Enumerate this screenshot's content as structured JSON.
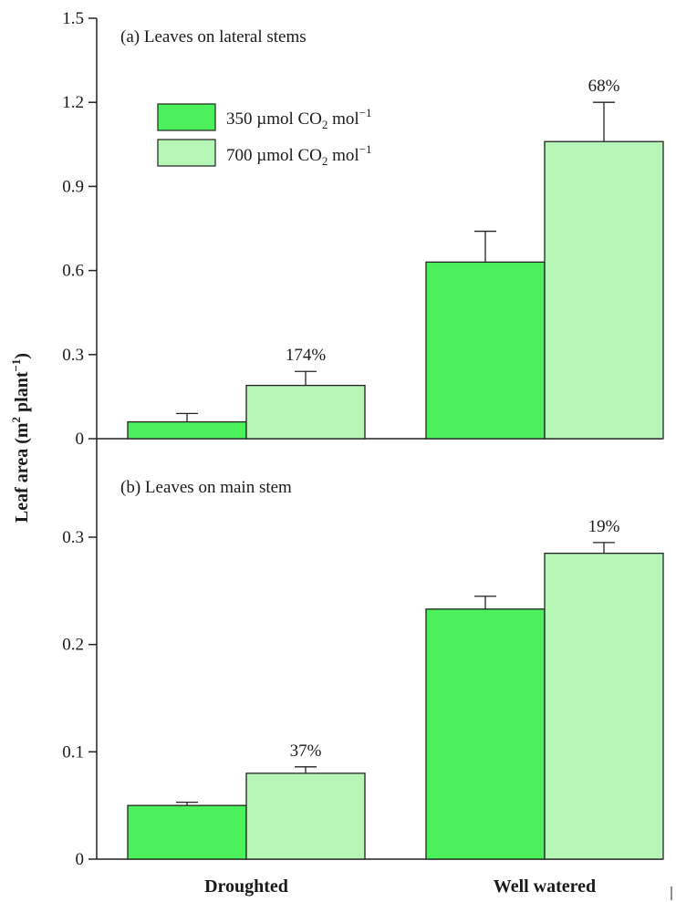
{
  "chart_data": [
    {
      "type": "bar",
      "title": "(a) Leaves on lateral stems",
      "categories": [
        "Droughted",
        "Well watered"
      ],
      "series": [
        {
          "name": "350 µmol CO2 mol−1",
          "color": "#4cf05c",
          "values": [
            0.06,
            0.63
          ],
          "errors": [
            0.03,
            0.11
          ]
        },
        {
          "name": "700 µmol CO2 mol−1",
          "color": "#b6f7b8",
          "values": [
            0.19,
            1.06
          ],
          "errors": [
            0.05,
            0.14
          ]
        }
      ],
      "annotations": [
        "174%",
        "68%"
      ],
      "ylim": [
        0,
        1.5
      ],
      "yticks": [
        0,
        0.3,
        0.6,
        0.9,
        1.2,
        1.5
      ],
      "ytick_labels": [
        "0",
        "0.3",
        "0.6",
        "0.9",
        "1.2",
        "1.5"
      ]
    },
    {
      "type": "bar",
      "title": "(b) Leaves on main stem",
      "categories": [
        "Droughted",
        "Well watered"
      ],
      "series": [
        {
          "name": "350 µmol CO2 mol−1",
          "color": "#4cf05c",
          "values": [
            0.05,
            0.233
          ],
          "errors": [
            0.003,
            0.012
          ]
        },
        {
          "name": "700 µmol CO2 mol−1",
          "color": "#b6f7b8",
          "values": [
            0.08,
            0.285
          ],
          "errors": [
            0.006,
            0.01
          ]
        }
      ],
      "annotations": [
        "37%",
        "19%"
      ],
      "ylim": [
        0,
        0.35
      ],
      "yticks": [
        0,
        0.1,
        0.2,
        0.3
      ],
      "ytick_labels": [
        "0",
        "0.1",
        "0.2",
        "0.3"
      ]
    }
  ],
  "legend": {
    "placement": "top-left",
    "items": [
      {
        "pre": "350 µmol CO",
        "sub": "2",
        "post": " mol",
        "sup": "−1",
        "color": "#4cf05c"
      },
      {
        "pre": "700 µmol CO",
        "sub": "2",
        "post": " mol",
        "sup": "−1",
        "color": "#b6f7b8"
      }
    ]
  },
  "ylabel": {
    "pre": "Leaf area (m",
    "sup1": "2",
    "mid": " plant",
    "sup2": "−1",
    "post": ")"
  },
  "xlabels": [
    "Droughted",
    "Well watered"
  ]
}
